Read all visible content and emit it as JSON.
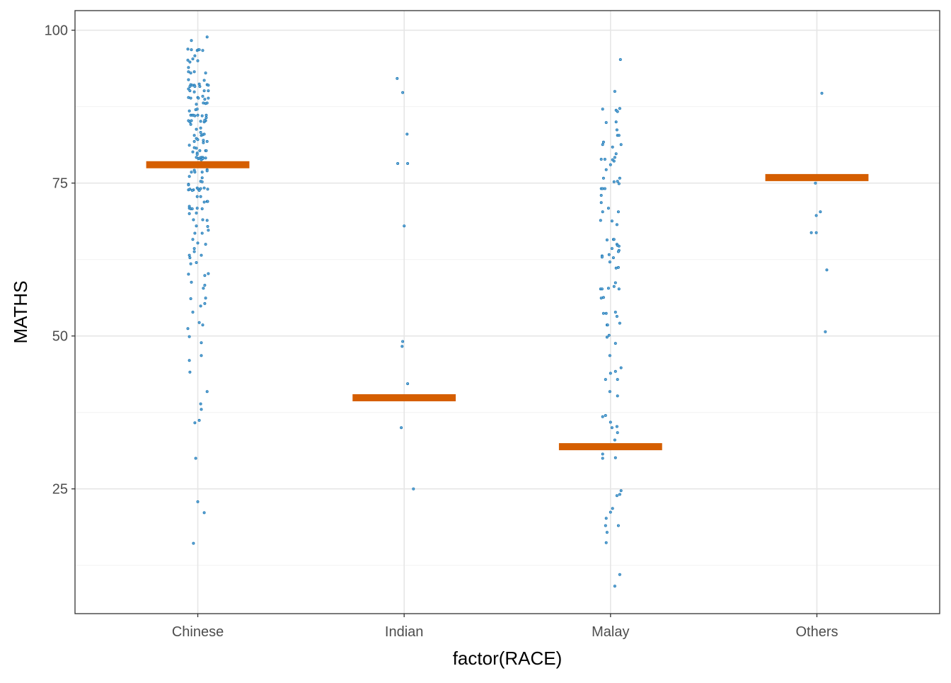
{
  "chart_data": {
    "type": "scatter",
    "subtype": "jittered strip plot with summary bars",
    "title": "",
    "xlabel": "factor(RACE)",
    "ylabel": "MATHS",
    "categories": [
      "Chinese",
      "Indian",
      "Malay",
      "Others"
    ],
    "ylim": [
      4.6,
      103.2
    ],
    "yticks": [
      "25",
      "50",
      "75",
      "100"
    ],
    "ytick_values": [
      25,
      50,
      75,
      100
    ],
    "grid": true,
    "legend": "none",
    "point_color": "#1f78b4",
    "summary_color": "#D55E00",
    "jitter_unit": "0.001 category",
    "summary": [
      78.0,
      39.9,
      31.9,
      75.9
    ],
    "points": [
      [
        [
          45,
          98.9
        ],
        [
          -31,
          98.3
        ],
        [
          -48,
          96.9
        ],
        [
          -31,
          96.8
        ],
        [
          -3,
          96.7
        ],
        [
          3,
          96.8
        ],
        [
          7,
          96.8
        ],
        [
          24,
          96.7
        ],
        [
          -14,
          95.8
        ],
        [
          -24,
          95.3
        ],
        [
          -48,
          95.1
        ],
        [
          -38,
          94.8
        ],
        [
          0,
          95.0
        ],
        [
          -45,
          93.9
        ],
        [
          -45,
          93.2
        ],
        [
          -34,
          93.0
        ],
        [
          -17,
          93.2
        ],
        [
          38,
          93.0
        ],
        [
          -45,
          91.9
        ],
        [
          31,
          91.8
        ],
        [
          -34,
          91.1
        ],
        [
          -27,
          91.0
        ],
        [
          -17,
          91.0
        ],
        [
          -14,
          90.8
        ],
        [
          -38,
          90.8
        ],
        [
          7,
          91.2
        ],
        [
          10,
          90.8
        ],
        [
          45,
          91.1
        ],
        [
          51,
          91.0
        ],
        [
          -45,
          90.4
        ],
        [
          -38,
          90.1
        ],
        [
          -17,
          89.9
        ],
        [
          31,
          90.1
        ],
        [
          51,
          90.1
        ],
        [
          -45,
          89.0
        ],
        [
          -34,
          88.9
        ],
        [
          0,
          89.0
        ],
        [
          3,
          88.9
        ],
        [
          24,
          89.2
        ],
        [
          34,
          88.7
        ],
        [
          51,
          88.9
        ],
        [
          27,
          88.1
        ],
        [
          38,
          88.0
        ],
        [
          45,
          88.1
        ],
        [
          -7,
          87.9
        ],
        [
          -41,
          86.8
        ],
        [
          -10,
          87.0
        ],
        [
          -3,
          87.1
        ],
        [
          -34,
          86.1
        ],
        [
          -27,
          86.1
        ],
        [
          -21,
          86.1
        ],
        [
          -14,
          86.0
        ],
        [
          0,
          86.1
        ],
        [
          21,
          86.0
        ],
        [
          41,
          86.1
        ],
        [
          41,
          85.7
        ],
        [
          -45,
          85.2
        ],
        [
          -38,
          85.0
        ],
        [
          -31,
          85.2
        ],
        [
          -34,
          84.6
        ],
        [
          14,
          85.1
        ],
        [
          31,
          85.0
        ],
        [
          38,
          85.2
        ],
        [
          34,
          85.3
        ],
        [
          -7,
          83.8
        ],
        [
          14,
          84.0
        ],
        [
          -17,
          82.8
        ],
        [
          -7,
          82.3
        ],
        [
          0,
          82.1
        ],
        [
          14,
          83.3
        ],
        [
          17,
          82.8
        ],
        [
          24,
          82.9
        ],
        [
          31,
          83.0
        ],
        [
          -17,
          81.8
        ],
        [
          27,
          82.0
        ],
        [
          45,
          81.8
        ],
        [
          27,
          81.6
        ],
        [
          -41,
          81.2
        ],
        [
          -17,
          80.8
        ],
        [
          -7,
          80.7
        ],
        [
          -24,
          80.1
        ],
        [
          -3,
          79.9
        ],
        [
          -3,
          79.7
        ],
        [
          10,
          80.3
        ],
        [
          38,
          80.3
        ],
        [
          41,
          80.3
        ],
        [
          -7,
          79.2
        ],
        [
          3,
          79.0
        ],
        [
          10,
          79.1
        ],
        [
          17,
          79.2
        ],
        [
          24,
          79.2
        ],
        [
          38,
          79.1
        ],
        [
          17,
          78.8
        ],
        [
          24,
          79.0
        ],
        [
          -17,
          77.1
        ],
        [
          -31,
          76.8
        ],
        [
          -14,
          76.8
        ],
        [
          21,
          76.8
        ],
        [
          45,
          77.2
        ],
        [
          45,
          77.0
        ],
        [
          -41,
          76.1
        ],
        [
          21,
          75.85
        ],
        [
          14,
          75.3
        ],
        [
          21,
          75.2
        ],
        [
          -45,
          74.8
        ],
        [
          -45,
          74.7
        ],
        [
          -45,
          73.9
        ],
        [
          -38,
          74.0
        ],
        [
          -21,
          73.9
        ],
        [
          -27,
          73.8
        ],
        [
          -3,
          74.2
        ],
        [
          3,
          74.0
        ],
        [
          7,
          73.8
        ],
        [
          14,
          74.1
        ],
        [
          31,
          74.2
        ],
        [
          48,
          74.0
        ],
        [
          -3,
          72.8
        ],
        [
          14,
          72.8
        ],
        [
          31,
          71.9
        ],
        [
          45,
          72.0
        ],
        [
          48,
          72.0
        ],
        [
          -41,
          71.2
        ],
        [
          -41,
          70.9
        ],
        [
          -34,
          70.8
        ],
        [
          -27,
          70.8
        ],
        [
          -3,
          70.9
        ],
        [
          21,
          70.8
        ],
        [
          -41,
          70.0
        ],
        [
          -7,
          70.1
        ],
        [
          -21,
          69.0
        ],
        [
          24,
          69.0
        ],
        [
          45,
          68.9
        ],
        [
          -7,
          68.0
        ],
        [
          48,
          67.9
        ],
        [
          51,
          67.3
        ],
        [
          -14,
          66.8
        ],
        [
          21,
          66.8
        ],
        [
          -24,
          65.8
        ],
        [
          0,
          65.2
        ],
        [
          38,
          65.0
        ],
        [
          -17,
          64.3
        ],
        [
          -17,
          63.8
        ],
        [
          -41,
          63.2
        ],
        [
          -38,
          62.8
        ],
        [
          17,
          63.2
        ],
        [
          -34,
          61.8
        ],
        [
          -7,
          62.0
        ],
        [
          -45,
          60.1
        ],
        [
          34,
          59.9
        ],
        [
          51,
          60.2
        ],
        [
          -31,
          58.8
        ],
        [
          34,
          58.3
        ],
        [
          27,
          57.8
        ],
        [
          -34,
          56.1
        ],
        [
          38,
          56.2
        ],
        [
          34,
          55.3
        ],
        [
          14,
          54.9
        ],
        [
          -24,
          53.9
        ],
        [
          7,
          52.2
        ],
        [
          24,
          51.8
        ],
        [
          -48,
          51.2
        ],
        [
          -41,
          49.9
        ],
        [
          17,
          48.9
        ],
        [
          17,
          46.8
        ],
        [
          -41,
          46.0
        ],
        [
          -38,
          44.1
        ],
        [
          45,
          40.9
        ],
        [
          14,
          38.9
        ],
        [
          17,
          38.0
        ],
        [
          7,
          36.2
        ],
        [
          -14,
          35.8
        ],
        [
          -10,
          30.0
        ],
        [
          0,
          22.9
        ],
        [
          31,
          21.1
        ],
        [
          -21,
          16.1
        ]
      ],
      [
        [
          -34,
          92.1
        ],
        [
          -7,
          89.8
        ],
        [
          14,
          83.0
        ],
        [
          -31,
          78.2
        ],
        [
          17,
          78.2
        ],
        [
          0,
          68.0
        ],
        [
          -7,
          49.1
        ],
        [
          -10,
          48.3
        ],
        [
          17,
          42.2
        ],
        [
          -14,
          35.0
        ],
        [
          45,
          25.0
        ]
      ],
      [
        [
          48,
          95.2
        ],
        [
          21,
          90.0
        ],
        [
          -38,
          87.1
        ],
        [
          27,
          86.9
        ],
        [
          34,
          86.7
        ],
        [
          45,
          87.2
        ],
        [
          -21,
          84.9
        ],
        [
          27,
          85.0
        ],
        [
          31,
          83.7
        ],
        [
          34,
          82.8
        ],
        [
          41,
          82.8
        ],
        [
          -34,
          81.7
        ],
        [
          -38,
          81.3
        ],
        [
          51,
          81.3
        ],
        [
          10,
          80.9
        ],
        [
          27,
          79.8
        ],
        [
          21,
          79.2
        ],
        [
          -45,
          78.9
        ],
        [
          -27,
          78.9
        ],
        [
          10,
          78.8
        ],
        [
          17,
          78.6
        ],
        [
          0,
          78.0
        ],
        [
          -21,
          77.2
        ],
        [
          -34,
          75.8
        ],
        [
          45,
          75.8
        ],
        [
          17,
          75.2
        ],
        [
          34,
          75.3
        ],
        [
          41,
          74.9
        ],
        [
          -45,
          74.1
        ],
        [
          -38,
          74.1
        ],
        [
          -27,
          74.1
        ],
        [
          -45,
          73.0
        ],
        [
          -45,
          71.8
        ],
        [
          -10,
          70.9
        ],
        [
          -38,
          70.3
        ],
        [
          38,
          70.3
        ],
        [
          -48,
          68.9
        ],
        [
          7,
          68.8
        ],
        [
          31,
          68.2
        ],
        [
          -17,
          65.7
        ],
        [
          14,
          65.8
        ],
        [
          17,
          65.8
        ],
        [
          31,
          65.0
        ],
        [
          34,
          64.8
        ],
        [
          41,
          64.7
        ],
        [
          7,
          64.3
        ],
        [
          41,
          64.0
        ],
        [
          38,
          63.8
        ],
        [
          -41,
          63.1
        ],
        [
          -41,
          62.9
        ],
        [
          -7,
          63.3
        ],
        [
          14,
          62.8
        ],
        [
          -3,
          62.1
        ],
        [
          27,
          61.1
        ],
        [
          38,
          61.2
        ],
        [
          24,
          58.7
        ],
        [
          17,
          58.1
        ],
        [
          -48,
          57.7
        ],
        [
          -41,
          57.7
        ],
        [
          -10,
          57.8
        ],
        [
          41,
          57.7
        ],
        [
          -45,
          56.2
        ],
        [
          -34,
          56.3
        ],
        [
          -34,
          53.7
        ],
        [
          -21,
          53.7
        ],
        [
          24,
          53.9
        ],
        [
          31,
          53.2
        ],
        [
          -17,
          51.8
        ],
        [
          -14,
          51.8
        ],
        [
          45,
          52.1
        ],
        [
          -17,
          49.8
        ],
        [
          -7,
          50.1
        ],
        [
          24,
          48.8
        ],
        [
          -3,
          46.8
        ],
        [
          51,
          44.8
        ],
        [
          24,
          44.2
        ],
        [
          0,
          43.9
        ],
        [
          -24,
          42.9
        ],
        [
          34,
          42.9
        ],
        [
          -3,
          40.9
        ],
        [
          34,
          40.2
        ],
        [
          -38,
          36.8
        ],
        [
          -24,
          37.0
        ],
        [
          0,
          35.9
        ],
        [
          7,
          35.0
        ],
        [
          31,
          35.2
        ],
        [
          34,
          34.2
        ],
        [
          21,
          33.0
        ],
        [
          -38,
          30.7
        ],
        [
          -38,
          30.0
        ],
        [
          24,
          30.1
        ],
        [
          51,
          24.7
        ],
        [
          45,
          24.1
        ],
        [
          31,
          23.9
        ],
        [
          10,
          21.8
        ],
        [
          0,
          21.2
        ],
        [
          -21,
          20.2
        ],
        [
          -24,
          19.0
        ],
        [
          38,
          19.0
        ],
        [
          -17,
          17.9
        ],
        [
          -21,
          16.2
        ],
        [
          45,
          11.0
        ],
        [
          21,
          9.1
        ]
      ],
      [
        [
          24,
          89.7
        ],
        [
          -7,
          75.0
        ],
        [
          17,
          70.3
        ],
        [
          -3,
          69.7
        ],
        [
          -27,
          66.9
        ],
        [
          -3,
          66.9
        ],
        [
          48,
          60.8
        ],
        [
          41,
          50.7
        ]
      ]
    ]
  }
}
